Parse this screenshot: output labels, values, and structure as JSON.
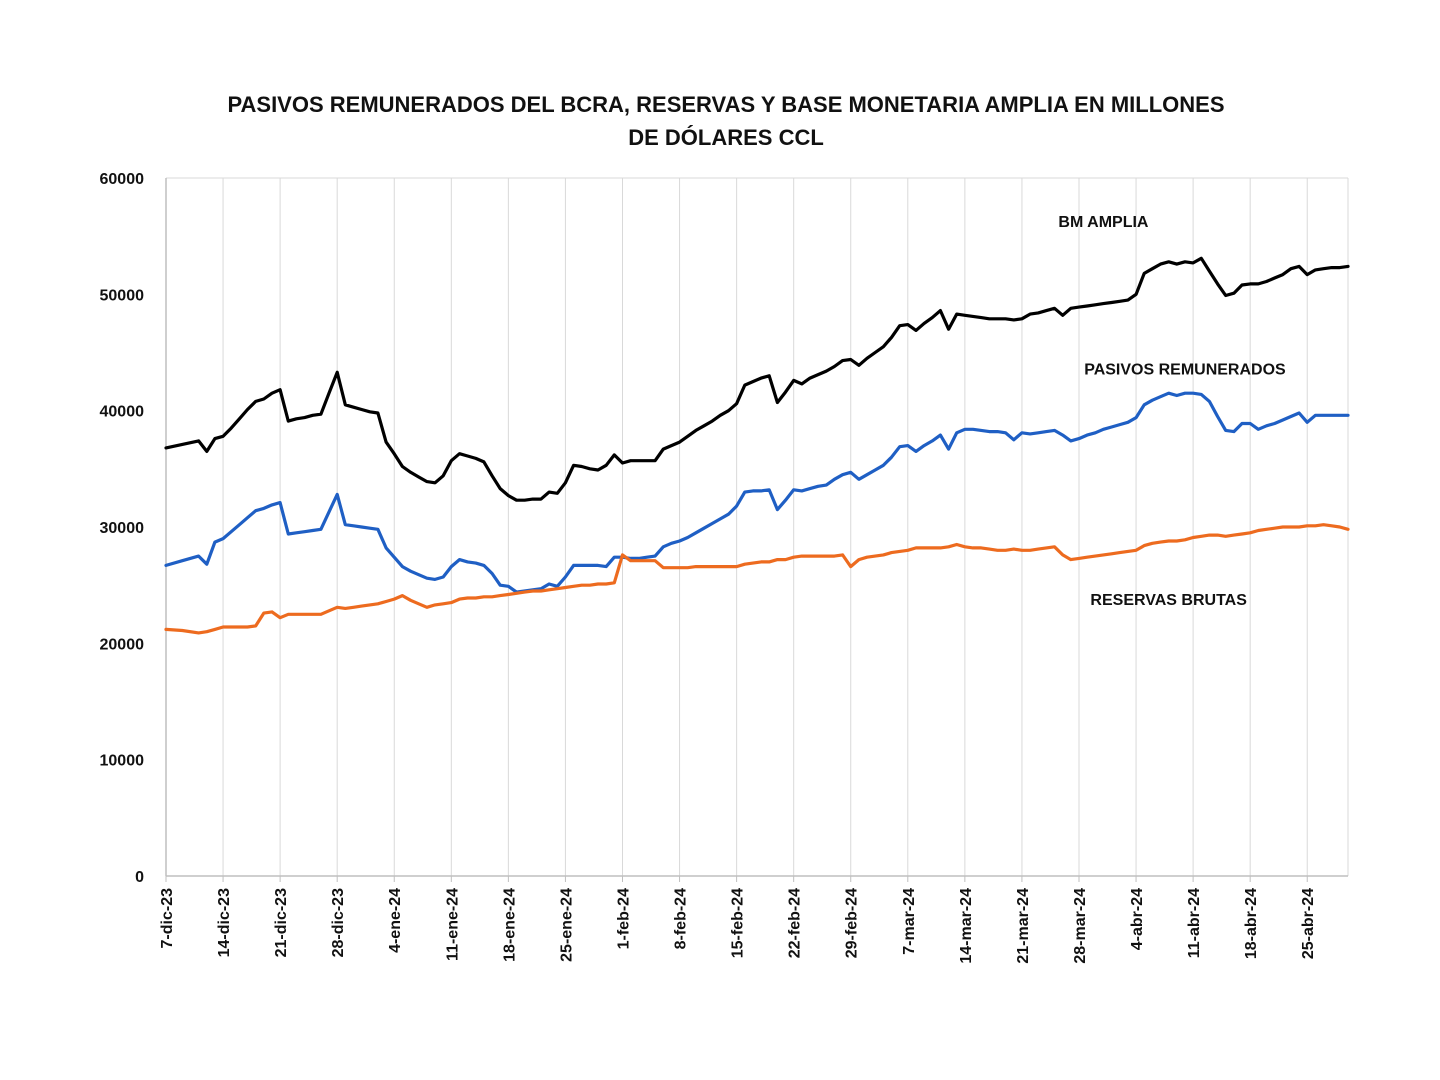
{
  "chart_data": {
    "type": "line",
    "title_line1": "PASIVOS REMUNERADOS DEL BCRA, RESERVAS Y BASE MONETARIA AMPLIA EN MILLONES",
    "title_line2": "DE DÓLARES CCL",
    "ylim": [
      0,
      60000
    ],
    "yticks": [
      0,
      10000,
      20000,
      30000,
      40000,
      50000,
      60000
    ],
    "xticks": [
      "7-dic-23",
      "14-dic-23",
      "21-dic-23",
      "28-dic-23",
      "4-ene-24",
      "11-ene-24",
      "18-ene-24",
      "25-ene-24",
      "1-feb-24",
      "8-feb-24",
      "15-feb-24",
      "22-feb-24",
      "29-feb-24",
      "7-mar-24",
      "14-mar-24",
      "21-mar-24",
      "28-mar-24",
      "4-abr-24",
      "11-abr-24",
      "18-abr-24",
      "25-abr-24"
    ],
    "x_range_days": [
      0,
      145
    ],
    "grid": "vertical",
    "series": [
      {
        "name": "BM AMPLIA",
        "color": "#000000",
        "x": [
          0,
          2,
          4,
          5,
          6,
          7,
          8,
          9,
          10,
          11,
          12,
          13,
          14,
          15,
          16,
          17,
          18,
          19,
          20,
          21,
          22,
          23,
          24,
          25,
          26,
          27,
          28,
          29,
          30,
          31,
          32,
          33,
          34,
          35,
          36,
          37,
          38,
          39,
          40,
          41,
          42,
          43,
          44,
          45,
          46,
          47,
          48,
          49,
          50,
          51,
          52,
          53,
          54,
          55,
          56,
          57,
          58,
          59,
          60,
          61,
          62,
          63,
          64,
          65,
          66,
          67,
          68,
          69,
          70,
          71,
          72,
          73,
          74,
          75,
          76,
          77,
          78,
          79,
          80,
          81,
          82,
          83,
          84,
          85,
          86,
          87,
          88,
          89,
          90,
          91,
          92,
          93,
          94,
          95,
          96,
          97,
          98,
          99,
          100,
          101,
          102,
          103,
          104,
          105,
          106,
          107,
          108,
          109,
          110,
          111,
          112,
          113,
          114,
          115,
          116,
          117,
          118,
          119,
          120,
          121,
          122,
          123,
          124,
          125,
          126,
          127,
          128,
          129,
          130,
          131,
          132,
          133,
          134,
          135,
          136,
          137,
          138,
          139,
          140,
          141,
          142,
          143,
          144,
          145
        ],
        "values": [
          36800,
          37100,
          37400,
          36500,
          37600,
          37800,
          38500,
          39300,
          40100,
          40800,
          41000,
          41500,
          41800,
          39100,
          39300,
          39400,
          39600,
          39700,
          41500,
          43300,
          40500,
          40300,
          40100,
          39900,
          39800,
          37300,
          36300,
          35200,
          34700,
          34300,
          33900,
          33800,
          34400,
          35700,
          36300,
          36100,
          35900,
          35600,
          34400,
          33300,
          32700,
          32300,
          32300,
          32400,
          32400,
          33000,
          32900,
          33800,
          35300,
          35200,
          35000,
          34900,
          35300,
          36200,
          35500,
          35700,
          35700,
          35700,
          35700,
          36700,
          37000,
          37300,
          37800,
          38300,
          38700,
          39100,
          39600,
          40000,
          40600,
          42200,
          42500,
          42800,
          43000,
          40700,
          41600,
          42600,
          42300,
          42800,
          43100,
          43400,
          43800,
          44300,
          44400,
          43900,
          44500,
          45000,
          45500,
          46300,
          47300,
          47400,
          46900,
          47500,
          48000,
          48600,
          47000,
          48300,
          48200,
          48100,
          48000,
          47900,
          47900,
          47900,
          47800,
          47900,
          48300,
          48400,
          48600,
          48800,
          48200,
          48800,
          48900,
          49000,
          49100,
          49200,
          49300,
          49400,
          49500,
          50000,
          51800,
          52200,
          52600,
          52800,
          52600,
          52800,
          52700,
          53100,
          52000,
          50900,
          49900,
          50100,
          50800,
          50900,
          50900,
          51100,
          51400,
          51700,
          52200,
          52400,
          51700,
          52100,
          52200,
          52300,
          52300,
          52400
        ]
      },
      {
        "name": "PASIVOS REMUNERADOS",
        "color": "#1f5fc4",
        "x": [
          0,
          2,
          4,
          5,
          6,
          7,
          8,
          9,
          10,
          11,
          12,
          13,
          14,
          15,
          16,
          17,
          18,
          19,
          20,
          21,
          22,
          23,
          24,
          25,
          26,
          27,
          28,
          29,
          30,
          31,
          32,
          33,
          34,
          35,
          36,
          37,
          38,
          39,
          40,
          41,
          42,
          43,
          44,
          45,
          46,
          47,
          48,
          49,
          50,
          51,
          52,
          53,
          54,
          55,
          56,
          57,
          58,
          59,
          60,
          61,
          62,
          63,
          64,
          65,
          66,
          67,
          68,
          69,
          70,
          71,
          72,
          73,
          74,
          75,
          76,
          77,
          78,
          79,
          80,
          81,
          82,
          83,
          84,
          85,
          86,
          87,
          88,
          89,
          90,
          91,
          92,
          93,
          94,
          95,
          96,
          97,
          98,
          99,
          100,
          101,
          102,
          103,
          104,
          105,
          106,
          107,
          108,
          109,
          110,
          111,
          112,
          113,
          114,
          115,
          116,
          117,
          118,
          119,
          120,
          121,
          122,
          123,
          124,
          125,
          126,
          127,
          128,
          129,
          130,
          131,
          132,
          133,
          134,
          135,
          136,
          137,
          138,
          139,
          140,
          141,
          142,
          143,
          144,
          145
        ],
        "values": [
          26700,
          27100,
          27500,
          26800,
          28700,
          29000,
          29600,
          30200,
          30800,
          31400,
          31600,
          31900,
          32100,
          29400,
          29500,
          29600,
          29700,
          29800,
          31300,
          32800,
          30200,
          30100,
          30000,
          29900,
          29800,
          28200,
          27400,
          26600,
          26200,
          25900,
          25600,
          25500,
          25700,
          26600,
          27200,
          27000,
          26900,
          26700,
          26000,
          25000,
          24900,
          24400,
          24500,
          24600,
          24700,
          25100,
          24900,
          25700,
          26700,
          26700,
          26700,
          26700,
          26600,
          27400,
          27400,
          27300,
          27300,
          27400,
          27500,
          28300,
          28600,
          28800,
          29100,
          29500,
          29900,
          30300,
          30700,
          31100,
          31800,
          33000,
          33100,
          33100,
          33200,
          31500,
          32300,
          33200,
          33100,
          33300,
          33500,
          33600,
          34100,
          34500,
          34700,
          34100,
          34500,
          34900,
          35300,
          36000,
          36900,
          37000,
          36500,
          37000,
          37400,
          37900,
          36700,
          38100,
          38400,
          38400,
          38300,
          38200,
          38200,
          38100,
          37500,
          38100,
          38000,
          38100,
          38200,
          38300,
          37900,
          37400,
          37600,
          37900,
          38100,
          38400,
          38600,
          38800,
          39000,
          39400,
          40500,
          40900,
          41200,
          41500,
          41300,
          41500,
          41500,
          41400,
          40800,
          39500,
          38300,
          38200,
          38900,
          38900,
          38400,
          38700,
          38900,
          39200,
          39500,
          39800,
          39000,
          39600,
          39600,
          39600,
          39600,
          39600
        ]
      },
      {
        "name": "RESERVAS BRUTAS",
        "color": "#ed6b1f",
        "x": [
          0,
          2,
          4,
          5,
          6,
          7,
          8,
          9,
          10,
          11,
          12,
          13,
          14,
          15,
          16,
          17,
          18,
          19,
          20,
          21,
          22,
          23,
          24,
          25,
          26,
          27,
          28,
          29,
          30,
          31,
          32,
          33,
          34,
          35,
          36,
          37,
          38,
          39,
          40,
          41,
          42,
          43,
          44,
          45,
          46,
          47,
          48,
          49,
          50,
          51,
          52,
          53,
          54,
          55,
          56,
          57,
          58,
          59,
          60,
          61,
          62,
          63,
          64,
          65,
          66,
          67,
          68,
          69,
          70,
          71,
          72,
          73,
          74,
          75,
          76,
          77,
          78,
          79,
          80,
          81,
          82,
          83,
          84,
          85,
          86,
          87,
          88,
          89,
          90,
          91,
          92,
          93,
          94,
          95,
          96,
          97,
          98,
          99,
          100,
          101,
          102,
          103,
          104,
          105,
          106,
          107,
          108,
          109,
          110,
          111,
          112,
          113,
          114,
          115,
          116,
          117,
          118,
          119,
          120,
          121,
          122,
          123,
          124,
          125,
          126,
          127,
          128,
          129,
          130,
          131,
          132,
          133,
          134,
          135,
          136,
          137,
          138,
          139,
          140,
          141,
          142,
          143,
          144,
          145
        ],
        "values": [
          21200,
          21100,
          20900,
          21000,
          21200,
          21400,
          21400,
          21400,
          21400,
          21500,
          22600,
          22700,
          22200,
          22500,
          22500,
          22500,
          22500,
          22500,
          22800,
          23100,
          23000,
          23100,
          23200,
          23300,
          23400,
          23600,
          23800,
          24100,
          23700,
          23400,
          23100,
          23300,
          23400,
          23500,
          23800,
          23900,
          23900,
          24000,
          24000,
          24100,
          24200,
          24300,
          24400,
          24500,
          24500,
          24600,
          24700,
          24800,
          24900,
          25000,
          25000,
          25100,
          25100,
          25200,
          27600,
          27100,
          27100,
          27100,
          27100,
          26500,
          26500,
          26500,
          26500,
          26600,
          26600,
          26600,
          26600,
          26600,
          26600,
          26800,
          26900,
          27000,
          27000,
          27200,
          27200,
          27400,
          27500,
          27500,
          27500,
          27500,
          27500,
          27600,
          26600,
          27200,
          27400,
          27500,
          27600,
          27800,
          27900,
          28000,
          28200,
          28200,
          28200,
          28200,
          28300,
          28500,
          28300,
          28200,
          28200,
          28100,
          28000,
          28000,
          28100,
          28000,
          28000,
          28100,
          28200,
          28300,
          27600,
          27200,
          27300,
          27400,
          27500,
          27600,
          27700,
          27800,
          27900,
          28000,
          28400,
          28600,
          28700,
          28800,
          28800,
          28900,
          29100,
          29200,
          29300,
          29300,
          29200,
          29300,
          29400,
          29500,
          29700,
          29800,
          29900,
          30000,
          30000,
          30000,
          30100,
          30100,
          30200,
          30100,
          30000,
          29800
        ]
      }
    ]
  }
}
